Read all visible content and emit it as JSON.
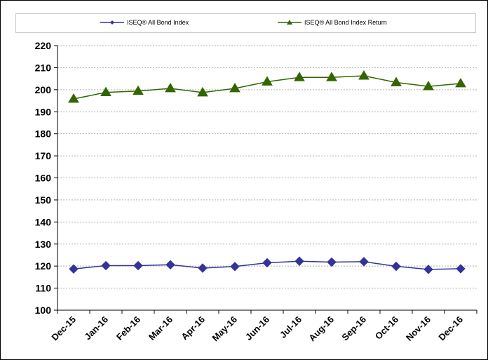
{
  "chart_data": {
    "type": "line",
    "categories": [
      "Dec-15",
      "Jan-16",
      "Feb-16",
      "Mar-16",
      "Apr-16",
      "May-16",
      "Jun-16",
      "Jul-16",
      "Aug-16",
      "Sep-16",
      "Oct-16",
      "Nov-16",
      "Dec-16"
    ],
    "series": [
      {
        "name": "ISEQ® All Bond Index",
        "color": "#333399",
        "marker": "diamond",
        "values": [
          118.7,
          120.2,
          120.2,
          120.6,
          119.1,
          119.8,
          121.5,
          122.2,
          121.8,
          122.0,
          119.9,
          118.5,
          118.8
        ]
      },
      {
        "name": "ISEQ® All Bond Index Return",
        "color": "#336600",
        "marker": "triangle",
        "values": [
          195.8,
          198.8,
          199.4,
          200.6,
          198.7,
          200.6,
          203.6,
          205.6,
          205.6,
          206.3,
          203.3,
          201.5,
          202.8
        ]
      }
    ],
    "xlabel": "",
    "ylabel": "",
    "ylim": [
      100,
      220
    ],
    "yticks": [
      100,
      110,
      120,
      130,
      140,
      150,
      160,
      170,
      180,
      190,
      200,
      210,
      220
    ],
    "grid": true,
    "legend_position": "top"
  }
}
